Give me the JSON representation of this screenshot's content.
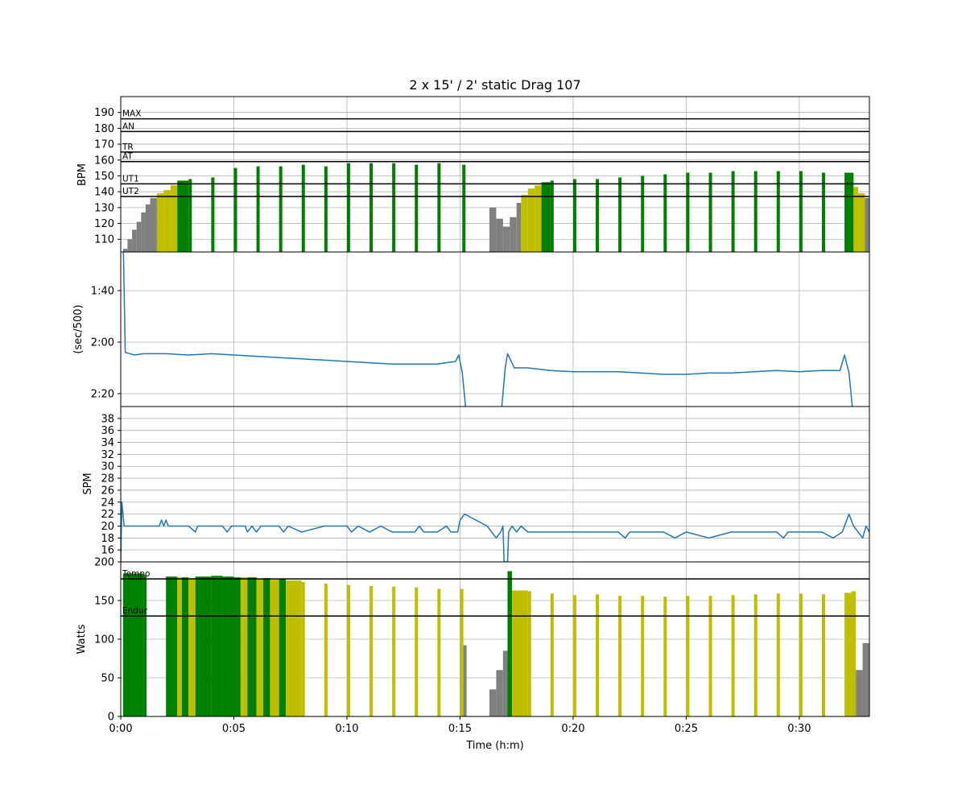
{
  "chart_data": {
    "title": "2 x 15' / 2' static Drag 107",
    "xlabel": "Time (h:m)",
    "x_unit": "minutes",
    "xlim": [
      0,
      33.1
    ],
    "x_ticks": [
      {
        "value": 0,
        "label": "0:00"
      },
      {
        "value": 5,
        "label": "0:05"
      },
      {
        "value": 10,
        "label": "0:10"
      },
      {
        "value": 15,
        "label": "0:15"
      },
      {
        "value": 20,
        "label": "0:20"
      },
      {
        "value": 25,
        "label": "0:25"
      },
      {
        "value": 30,
        "label": "0:30"
      }
    ],
    "grid": true,
    "colors": {
      "zone_green": "#008000",
      "zone_yellow": "#bfbf00",
      "zone_gray": "#808080",
      "line": "#1f77b4"
    },
    "panels": [
      {
        "id": "hr",
        "type": "bar",
        "ylabel": "BPM",
        "ylim": [
          102,
          200
        ],
        "yticks": [
          {
            "value": 110,
            "label": "110"
          },
          {
            "value": 120,
            "label": "120"
          },
          {
            "value": 130,
            "label": "130"
          },
          {
            "value": 140,
            "label": "140"
          },
          {
            "value": 150,
            "label": "150"
          },
          {
            "value": 160,
            "label": "160"
          },
          {
            "value": 170,
            "label": "170"
          },
          {
            "value": 180,
            "label": "180"
          },
          {
            "value": 190,
            "label": "190"
          }
        ],
        "zones": [
          {
            "label": "MAX",
            "value": 186
          },
          {
            "label": "AN",
            "value": 178
          },
          {
            "label": "TR",
            "value": 165
          },
          {
            "label": "AT",
            "value": 159
          },
          {
            "label": "UT1",
            "value": 145
          },
          {
            "label": "UT2",
            "value": 137
          }
        ],
        "points": [
          [
            0.1,
            104,
            "gray"
          ],
          [
            0.3,
            110,
            "gray"
          ],
          [
            0.5,
            116,
            "gray"
          ],
          [
            0.7,
            121,
            "gray"
          ],
          [
            0.9,
            127,
            "gray"
          ],
          [
            1.1,
            132,
            "gray"
          ],
          [
            1.3,
            136,
            "gray"
          ],
          [
            1.6,
            139,
            "yellow"
          ],
          [
            1.9,
            141,
            "yellow"
          ],
          [
            2.2,
            144,
            "yellow"
          ],
          [
            2.5,
            147,
            "green"
          ],
          [
            3,
            148,
            "green"
          ],
          [
            4,
            149,
            "green"
          ],
          [
            5,
            155,
            "green"
          ],
          [
            6,
            156,
            "green"
          ],
          [
            7,
            156,
            "green"
          ],
          [
            8,
            157,
            "green"
          ],
          [
            9,
            156,
            "green"
          ],
          [
            10,
            158,
            "green"
          ],
          [
            11,
            158,
            "green"
          ],
          [
            12,
            158,
            "green"
          ],
          [
            13,
            157,
            "green"
          ],
          [
            14,
            158,
            "green"
          ],
          [
            15.1,
            157,
            "green"
          ],
          [
            16.3,
            130,
            "gray"
          ],
          [
            16.6,
            123,
            "gray"
          ],
          [
            16.9,
            118,
            "gray"
          ],
          [
            17.2,
            124,
            "gray"
          ],
          [
            17.5,
            133,
            "gray"
          ],
          [
            17.7,
            138,
            "yellow"
          ],
          [
            18,
            142,
            "yellow"
          ],
          [
            18.3,
            144,
            "yellow"
          ],
          [
            18.6,
            146,
            "green"
          ],
          [
            19,
            147,
            "green"
          ],
          [
            20,
            148,
            "green"
          ],
          [
            21,
            148,
            "green"
          ],
          [
            22,
            149,
            "green"
          ],
          [
            23,
            150,
            "green"
          ],
          [
            24,
            151,
            "green"
          ],
          [
            25,
            152,
            "green"
          ],
          [
            26,
            152,
            "green"
          ],
          [
            27,
            153,
            "green"
          ],
          [
            28,
            153,
            "green"
          ],
          [
            29,
            153,
            "green"
          ],
          [
            30,
            153,
            "green"
          ],
          [
            31,
            152,
            "green"
          ],
          [
            32,
            152,
            "green"
          ],
          [
            32.4,
            143,
            "yellow"
          ],
          [
            32.6,
            139,
            "yellow"
          ],
          [
            32.9,
            136,
            "gray"
          ]
        ]
      },
      {
        "id": "pace",
        "type": "line",
        "ylabel": "(sec/500)",
        "ylim": [
          145,
          85
        ],
        "yticks": [
          {
            "value": 100,
            "label": "1:40"
          },
          {
            "value": 120,
            "label": "2:00"
          },
          {
            "value": 140,
            "label": "2:20"
          }
        ],
        "points": [
          [
            0,
            72
          ],
          [
            0.12,
            86
          ],
          [
            0.2,
            124
          ],
          [
            0.6,
            125
          ],
          [
            1,
            124.5
          ],
          [
            2,
            124.5
          ],
          [
            3,
            125
          ],
          [
            4,
            124.5
          ],
          [
            5,
            125
          ],
          [
            6,
            125.5
          ],
          [
            7,
            126
          ],
          [
            8,
            126.5
          ],
          [
            9,
            127
          ],
          [
            10,
            127.5
          ],
          [
            11,
            128
          ],
          [
            12,
            128.5
          ],
          [
            13,
            128.5
          ],
          [
            14,
            128.5
          ],
          [
            14.8,
            127.5
          ],
          [
            14.95,
            125
          ],
          [
            15.1,
            132
          ],
          [
            15.3,
            150
          ],
          [
            16.8,
            150
          ],
          [
            17,
            130
          ],
          [
            17.1,
            124.5
          ],
          [
            17.4,
            130
          ],
          [
            18,
            130
          ],
          [
            19,
            131
          ],
          [
            20,
            131.5
          ],
          [
            21,
            131.5
          ],
          [
            22,
            131.5
          ],
          [
            23,
            132
          ],
          [
            24,
            132.5
          ],
          [
            25,
            132.5
          ],
          [
            26,
            132
          ],
          [
            27,
            132
          ],
          [
            28,
            131.5
          ],
          [
            29,
            131
          ],
          [
            30,
            131.5
          ],
          [
            31,
            131
          ],
          [
            31.8,
            131
          ],
          [
            32,
            125
          ],
          [
            32.2,
            132
          ],
          [
            32.4,
            150
          ],
          [
            32.5,
            156
          ],
          [
            33.1,
            145.5
          ]
        ]
      },
      {
        "id": "spm",
        "type": "line",
        "ylabel": "SPM",
        "ylim": [
          14,
          40
        ],
        "yticks": [
          {
            "value": 16,
            "label": "16"
          },
          {
            "value": 18,
            "label": "18"
          },
          {
            "value": 20,
            "label": "20"
          },
          {
            "value": 22,
            "label": "22"
          },
          {
            "value": 24,
            "label": "24"
          },
          {
            "value": 26,
            "label": "26"
          },
          {
            "value": 28,
            "label": "28"
          },
          {
            "value": 30,
            "label": "30"
          },
          {
            "value": 32,
            "label": "32"
          },
          {
            "value": 34,
            "label": "34"
          },
          {
            "value": 36,
            "label": "36"
          },
          {
            "value": 38,
            "label": "38"
          }
        ],
        "points": [
          [
            0,
            14
          ],
          [
            0.05,
            24
          ],
          [
            0.15,
            20
          ],
          [
            1,
            20
          ],
          [
            1.7,
            20
          ],
          [
            1.8,
            21
          ],
          [
            1.9,
            20
          ],
          [
            2,
            21
          ],
          [
            2.1,
            20
          ],
          [
            3,
            20
          ],
          [
            3.3,
            19
          ],
          [
            3.4,
            20
          ],
          [
            4.5,
            20
          ],
          [
            4.7,
            19
          ],
          [
            4.9,
            20
          ],
          [
            5.5,
            20
          ],
          [
            5.6,
            19
          ],
          [
            5.8,
            20
          ],
          [
            6,
            19
          ],
          [
            6.2,
            20
          ],
          [
            7,
            20
          ],
          [
            7.2,
            19
          ],
          [
            7.4,
            20
          ],
          [
            8,
            19
          ],
          [
            9,
            20
          ],
          [
            10,
            20
          ],
          [
            10.2,
            19
          ],
          [
            10.5,
            20
          ],
          [
            11,
            19
          ],
          [
            11.5,
            20
          ],
          [
            12,
            19
          ],
          [
            13,
            19
          ],
          [
            13.2,
            20
          ],
          [
            13.4,
            19
          ],
          [
            14,
            19
          ],
          [
            14.4,
            20
          ],
          [
            14.6,
            19
          ],
          [
            14.9,
            19
          ],
          [
            15,
            21
          ],
          [
            15.2,
            22
          ],
          [
            16.2,
            20
          ],
          [
            16.6,
            18
          ],
          [
            16.8,
            19
          ],
          [
            16.9,
            20
          ],
          [
            16.95,
            14
          ],
          [
            17.1,
            14
          ],
          [
            17.15,
            19
          ],
          [
            17.3,
            20
          ],
          [
            17.5,
            19
          ],
          [
            17.7,
            20
          ],
          [
            18,
            19
          ],
          [
            20,
            19
          ],
          [
            22,
            19
          ],
          [
            22.3,
            18
          ],
          [
            22.5,
            19
          ],
          [
            24,
            19
          ],
          [
            24.5,
            18
          ],
          [
            25,
            19
          ],
          [
            26,
            18
          ],
          [
            27,
            19
          ],
          [
            28,
            19
          ],
          [
            29,
            19
          ],
          [
            29.3,
            18
          ],
          [
            29.5,
            19
          ],
          [
            31,
            19
          ],
          [
            31.5,
            18
          ],
          [
            31.9,
            19
          ],
          [
            32,
            20
          ],
          [
            32.2,
            22
          ],
          [
            32.4,
            20
          ],
          [
            32.6,
            19
          ],
          [
            32.8,
            18
          ],
          [
            32.95,
            20
          ],
          [
            33.1,
            19
          ]
        ]
      },
      {
        "id": "power",
        "type": "bar",
        "ylabel": "Watts",
        "ylim": [
          0,
          200
        ],
        "yticks": [
          {
            "value": 0,
            "label": "0"
          },
          {
            "value": 50,
            "label": "50"
          },
          {
            "value": 100,
            "label": "100"
          },
          {
            "value": 150,
            "label": "150"
          },
          {
            "value": 200,
            "label": "200"
          }
        ],
        "zones": [
          {
            "label": "Tempo",
            "value": 178
          },
          {
            "label": "Endur",
            "value": 130
          }
        ],
        "points": [
          [
            0.1,
            185,
            "green"
          ],
          [
            1,
            183,
            "green"
          ],
          [
            2,
            181,
            "green"
          ],
          [
            2.5,
            180,
            "yellow"
          ],
          [
            2.7,
            180,
            "green"
          ],
          [
            3,
            179,
            "yellow"
          ],
          [
            3.3,
            181,
            "green"
          ],
          [
            4,
            182,
            "green"
          ],
          [
            4.5,
            181,
            "green"
          ],
          [
            5,
            180,
            "green"
          ],
          [
            5.3,
            180,
            "yellow"
          ],
          [
            5.6,
            180,
            "green"
          ],
          [
            6,
            178,
            "yellow"
          ],
          [
            6.3,
            179,
            "green"
          ],
          [
            6.6,
            177,
            "yellow"
          ],
          [
            7,
            178,
            "green"
          ],
          [
            7.3,
            176,
            "yellow"
          ],
          [
            8,
            174,
            "yellow"
          ],
          [
            9,
            172,
            "yellow"
          ],
          [
            10,
            170,
            "yellow"
          ],
          [
            11,
            169,
            "yellow"
          ],
          [
            12,
            168,
            "yellow"
          ],
          [
            13,
            167,
            "yellow"
          ],
          [
            14,
            165,
            "yellow"
          ],
          [
            15,
            165,
            "yellow"
          ],
          [
            15.15,
            92,
            "gray"
          ],
          [
            16.3,
            35,
            "gray"
          ],
          [
            16.6,
            60,
            "gray"
          ],
          [
            16.9,
            85,
            "gray"
          ],
          [
            17.1,
            188,
            "green"
          ],
          [
            17.3,
            163,
            "yellow"
          ],
          [
            18,
            162,
            "yellow"
          ],
          [
            19,
            159,
            "yellow"
          ],
          [
            20,
            157,
            "yellow"
          ],
          [
            21,
            158,
            "yellow"
          ],
          [
            22,
            156,
            "yellow"
          ],
          [
            23,
            156,
            "yellow"
          ],
          [
            24,
            155,
            "yellow"
          ],
          [
            25,
            156,
            "yellow"
          ],
          [
            26,
            156,
            "yellow"
          ],
          [
            27,
            157,
            "yellow"
          ],
          [
            28,
            158,
            "yellow"
          ],
          [
            29,
            159,
            "yellow"
          ],
          [
            30,
            159,
            "yellow"
          ],
          [
            31,
            158,
            "yellow"
          ],
          [
            32,
            160,
            "yellow"
          ],
          [
            32.3,
            162,
            "yellow"
          ],
          [
            32.5,
            60,
            "gray"
          ],
          [
            32.8,
            95,
            "gray"
          ],
          [
            33.1,
            115,
            "gray"
          ]
        ]
      }
    ]
  }
}
